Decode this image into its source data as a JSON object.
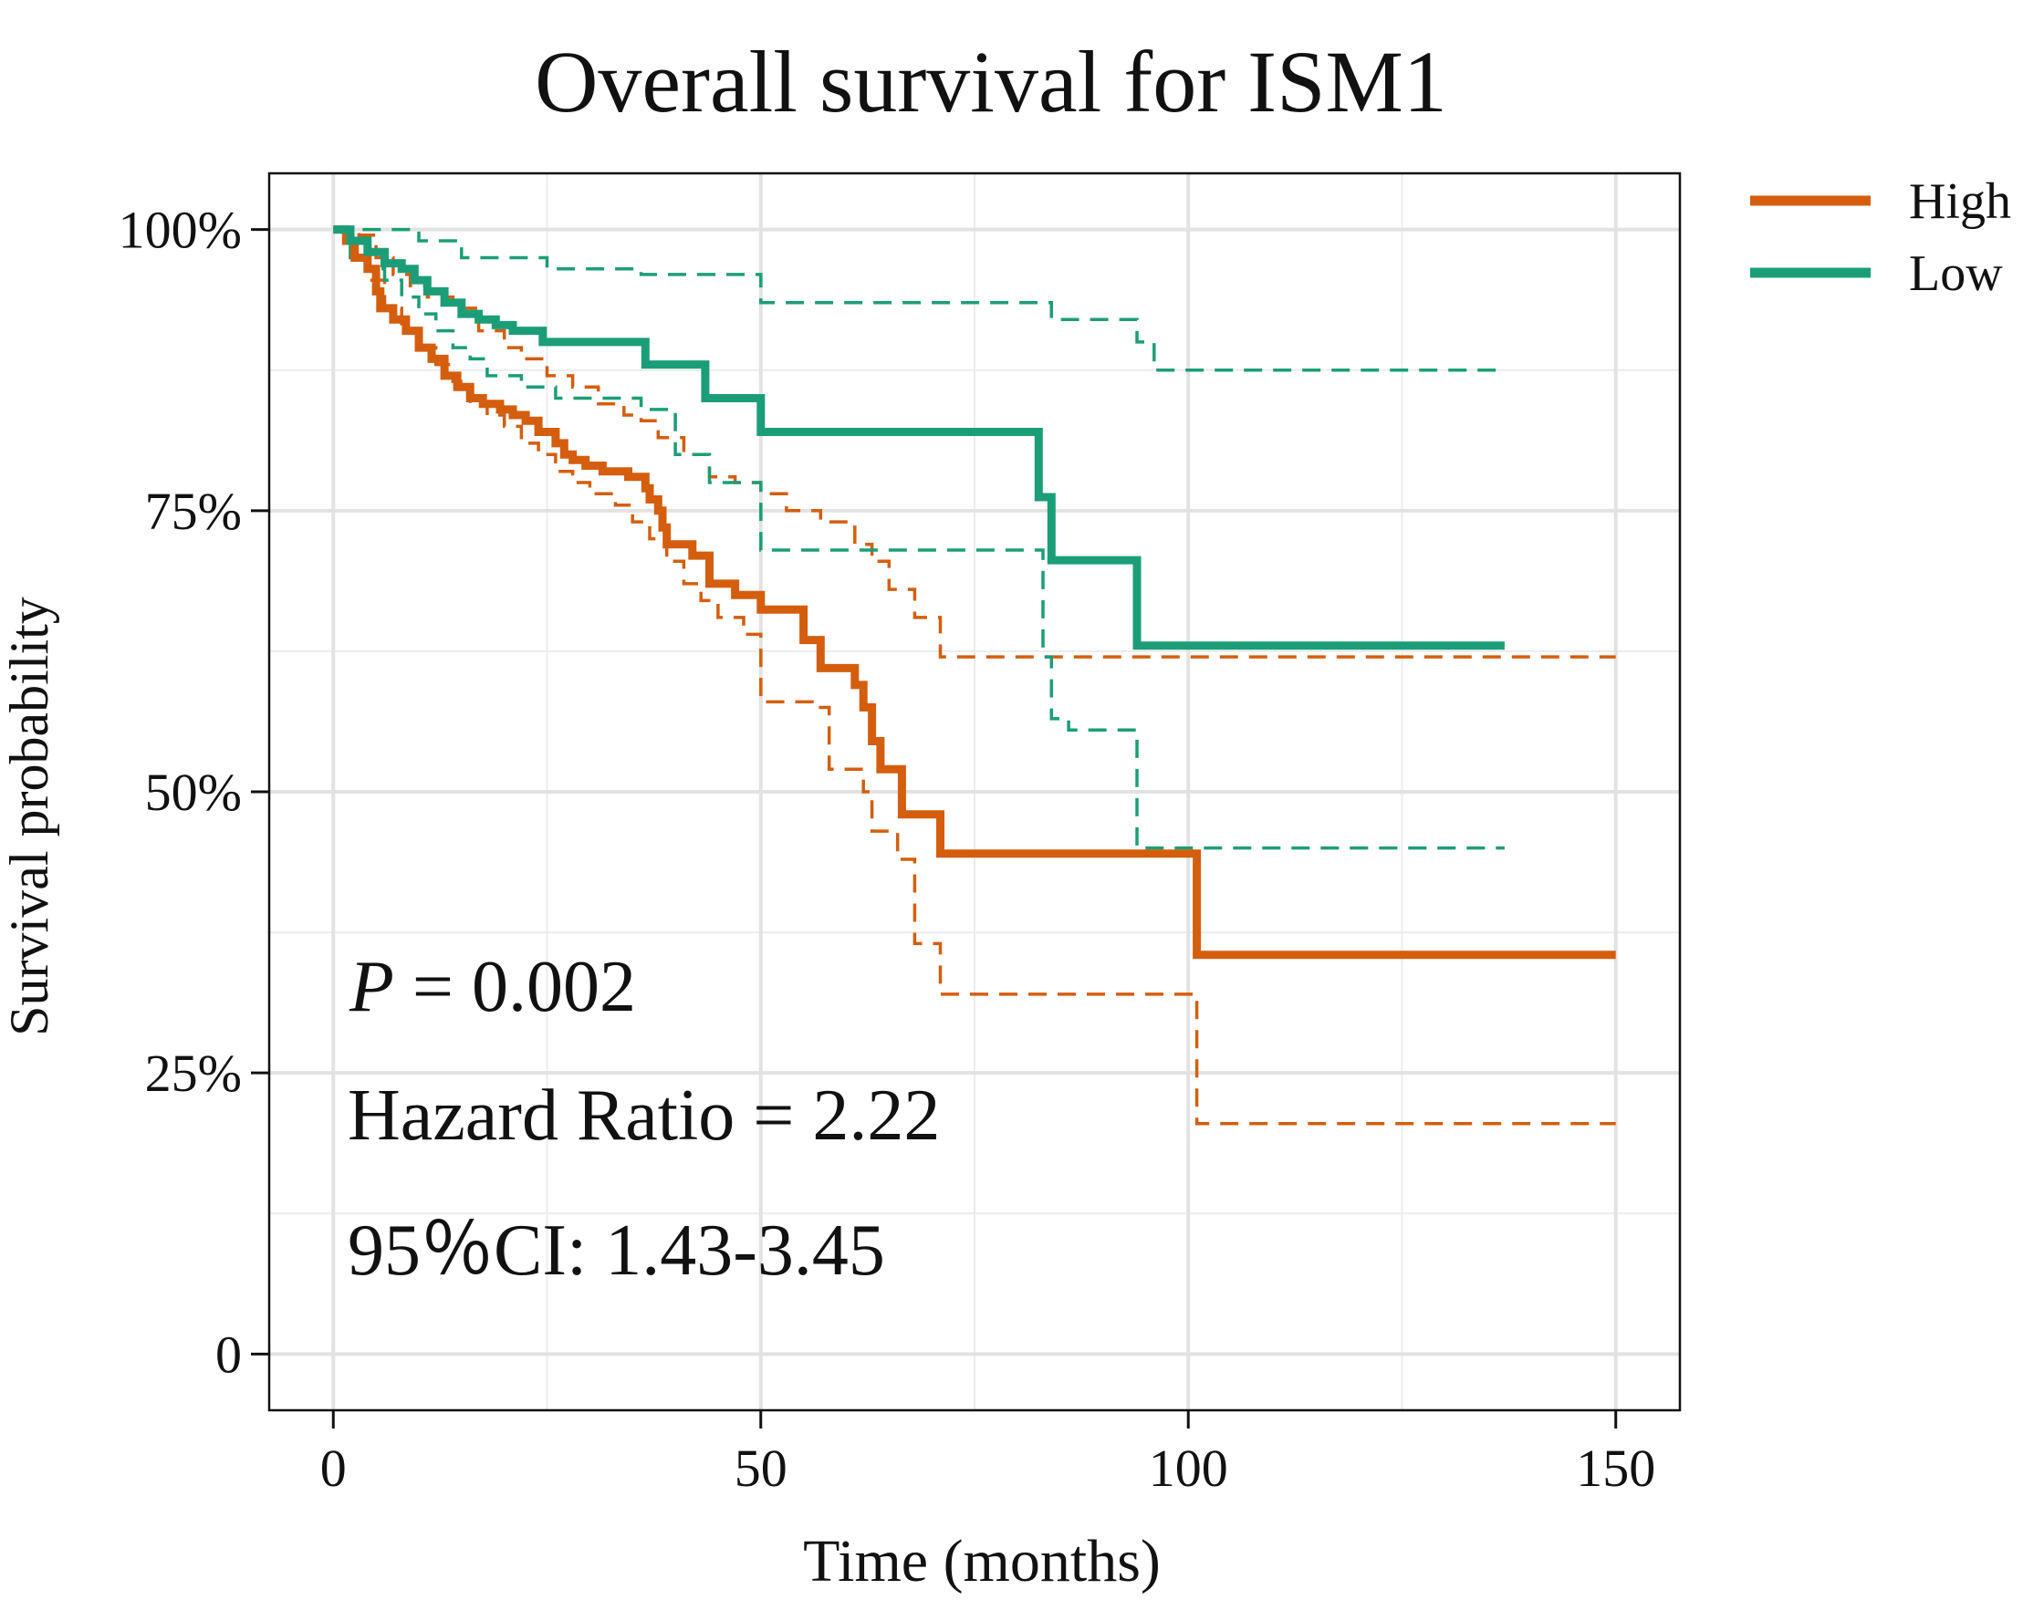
{
  "chart_data": {
    "type": "line",
    "subtype": "kaplan-meier",
    "title": "Overall survival for ISM1",
    "xlabel": "Time (months)",
    "ylabel": "Survival probability",
    "xlim": [
      -7.5,
      157.5
    ],
    "ylim": [
      -0.05,
      1.05
    ],
    "x_ticks": [
      0,
      50,
      100,
      150
    ],
    "x_tick_labels": [
      "0",
      "50",
      "100",
      "150"
    ],
    "y_ticks": [
      0,
      0.25,
      0.5,
      0.75,
      1.0
    ],
    "y_tick_labels": [
      "0",
      "25%",
      "50%",
      "75%",
      "100%"
    ],
    "grid": true,
    "legend_position": "right",
    "series": [
      {
        "name": "High",
        "color": "#D45E0E",
        "estimate": [
          [
            0,
            1.0
          ],
          [
            1.5,
            0.99
          ],
          [
            2.5,
            0.975
          ],
          [
            4,
            0.965
          ],
          [
            5,
            0.945
          ],
          [
            5.5,
            0.93
          ],
          [
            7,
            0.92
          ],
          [
            8.5,
            0.91
          ],
          [
            10,
            0.895
          ],
          [
            11.5,
            0.885
          ],
          [
            13,
            0.87
          ],
          [
            14.5,
            0.86
          ],
          [
            16,
            0.85
          ],
          [
            17.5,
            0.845
          ],
          [
            19.5,
            0.84
          ],
          [
            21,
            0.835
          ],
          [
            22.5,
            0.83
          ],
          [
            24,
            0.82
          ],
          [
            26,
            0.81
          ],
          [
            27,
            0.8
          ],
          [
            28,
            0.795
          ],
          [
            29.5,
            0.79
          ],
          [
            31.5,
            0.785
          ],
          [
            34.5,
            0.78
          ],
          [
            36.5,
            0.77
          ],
          [
            37,
            0.76
          ],
          [
            38,
            0.75
          ],
          [
            38.5,
            0.735
          ],
          [
            39,
            0.72
          ],
          [
            42,
            0.71
          ],
          [
            44,
            0.685
          ],
          [
            47,
            0.675
          ],
          [
            50,
            0.662
          ],
          [
            55,
            0.635
          ],
          [
            57,
            0.61
          ],
          [
            61,
            0.595
          ],
          [
            62,
            0.575
          ],
          [
            63,
            0.545
          ],
          [
            64,
            0.52
          ],
          [
            66.5,
            0.48
          ],
          [
            71,
            0.445
          ],
          [
            101,
            0.355
          ],
          [
            150,
            0.355
          ]
        ],
        "ci_upper": [
          [
            0,
            1.0
          ],
          [
            3,
            0.995
          ],
          [
            5,
            0.975
          ],
          [
            7,
            0.96
          ],
          [
            9,
            0.95
          ],
          [
            11,
            0.94
          ],
          [
            14,
            0.93
          ],
          [
            17,
            0.91
          ],
          [
            20,
            0.895
          ],
          [
            22,
            0.885
          ],
          [
            25,
            0.87
          ],
          [
            28,
            0.86
          ],
          [
            31,
            0.845
          ],
          [
            34,
            0.835
          ],
          [
            36,
            0.83
          ],
          [
            38,
            0.815
          ],
          [
            41,
            0.8
          ],
          [
            44,
            0.78
          ],
          [
            47,
            0.775
          ],
          [
            50,
            0.765
          ],
          [
            53,
            0.75
          ],
          [
            57,
            0.74
          ],
          [
            61,
            0.72
          ],
          [
            63,
            0.705
          ],
          [
            65,
            0.68
          ],
          [
            68,
            0.655
          ],
          [
            71,
            0.62
          ],
          [
            150,
            0.62
          ]
        ],
        "ci_lower": [
          [
            0,
            1.0
          ],
          [
            2,
            0.975
          ],
          [
            4,
            0.955
          ],
          [
            6,
            0.93
          ],
          [
            8,
            0.91
          ],
          [
            10,
            0.895
          ],
          [
            12,
            0.88
          ],
          [
            14,
            0.865
          ],
          [
            16,
            0.845
          ],
          [
            18,
            0.835
          ],
          [
            20,
            0.825
          ],
          [
            22,
            0.81
          ],
          [
            24,
            0.8
          ],
          [
            26,
            0.785
          ],
          [
            28,
            0.775
          ],
          [
            30,
            0.765
          ],
          [
            33,
            0.755
          ],
          [
            35,
            0.74
          ],
          [
            37,
            0.725
          ],
          [
            39,
            0.705
          ],
          [
            41,
            0.685
          ],
          [
            43,
            0.67
          ],
          [
            45,
            0.655
          ],
          [
            48,
            0.64
          ],
          [
            50,
            0.58
          ],
          [
            56,
            0.575
          ],
          [
            58,
            0.52
          ],
          [
            62,
            0.5
          ],
          [
            63,
            0.465
          ],
          [
            66,
            0.44
          ],
          [
            68,
            0.365
          ],
          [
            71,
            0.32
          ],
          [
            101,
            0.205
          ],
          [
            150,
            0.205
          ]
        ]
      },
      {
        "name": "Low",
        "color": "#1B9E77",
        "estimate": [
          [
            0,
            1.0
          ],
          [
            2,
            0.99
          ],
          [
            4,
            0.98
          ],
          [
            6,
            0.97
          ],
          [
            8,
            0.965
          ],
          [
            9.5,
            0.955
          ],
          [
            11,
            0.945
          ],
          [
            13,
            0.935
          ],
          [
            15,
            0.925
          ],
          [
            17,
            0.92
          ],
          [
            19,
            0.915
          ],
          [
            21,
            0.91
          ],
          [
            24.5,
            0.9
          ],
          [
            36.5,
            0.88
          ],
          [
            43.5,
            0.85
          ],
          [
            50,
            0.82
          ],
          [
            82.5,
            0.762
          ],
          [
            84,
            0.706
          ],
          [
            94,
            0.63
          ],
          [
            137,
            0.63
          ]
        ],
        "ci_upper": [
          [
            0,
            1.0
          ],
          [
            10,
            0.99
          ],
          [
            15,
            0.975
          ],
          [
            25,
            0.965
          ],
          [
            36,
            0.96
          ],
          [
            50,
            0.935
          ],
          [
            84,
            0.92
          ],
          [
            94,
            0.9
          ],
          [
            96,
            0.875
          ],
          [
            137,
            0.875
          ]
        ],
        "ci_lower": [
          [
            0,
            1.0
          ],
          [
            2,
            0.975
          ],
          [
            4,
            0.965
          ],
          [
            6,
            0.955
          ],
          [
            8,
            0.94
          ],
          [
            10,
            0.925
          ],
          [
            12,
            0.91
          ],
          [
            14,
            0.895
          ],
          [
            16,
            0.885
          ],
          [
            18,
            0.87
          ],
          [
            22,
            0.86
          ],
          [
            26,
            0.85
          ],
          [
            36,
            0.84
          ],
          [
            40,
            0.8
          ],
          [
            44,
            0.775
          ],
          [
            50,
            0.715
          ],
          [
            82,
            0.715
          ],
          [
            83,
            0.62
          ],
          [
            84,
            0.565
          ],
          [
            86,
            0.555
          ],
          [
            94,
            0.45
          ],
          [
            137,
            0.45
          ]
        ]
      }
    ],
    "annotations": {
      "p_value_letter": "P",
      "p_value_rest": " = 0.002",
      "hazard_ratio": "Hazard Ratio = 2.22",
      "ci": "95％CI: 1.43-3.45"
    },
    "legend": [
      {
        "label": "High",
        "color": "#D45E0E"
      },
      {
        "label": "Low",
        "color": "#1B9E77"
      }
    ]
  }
}
